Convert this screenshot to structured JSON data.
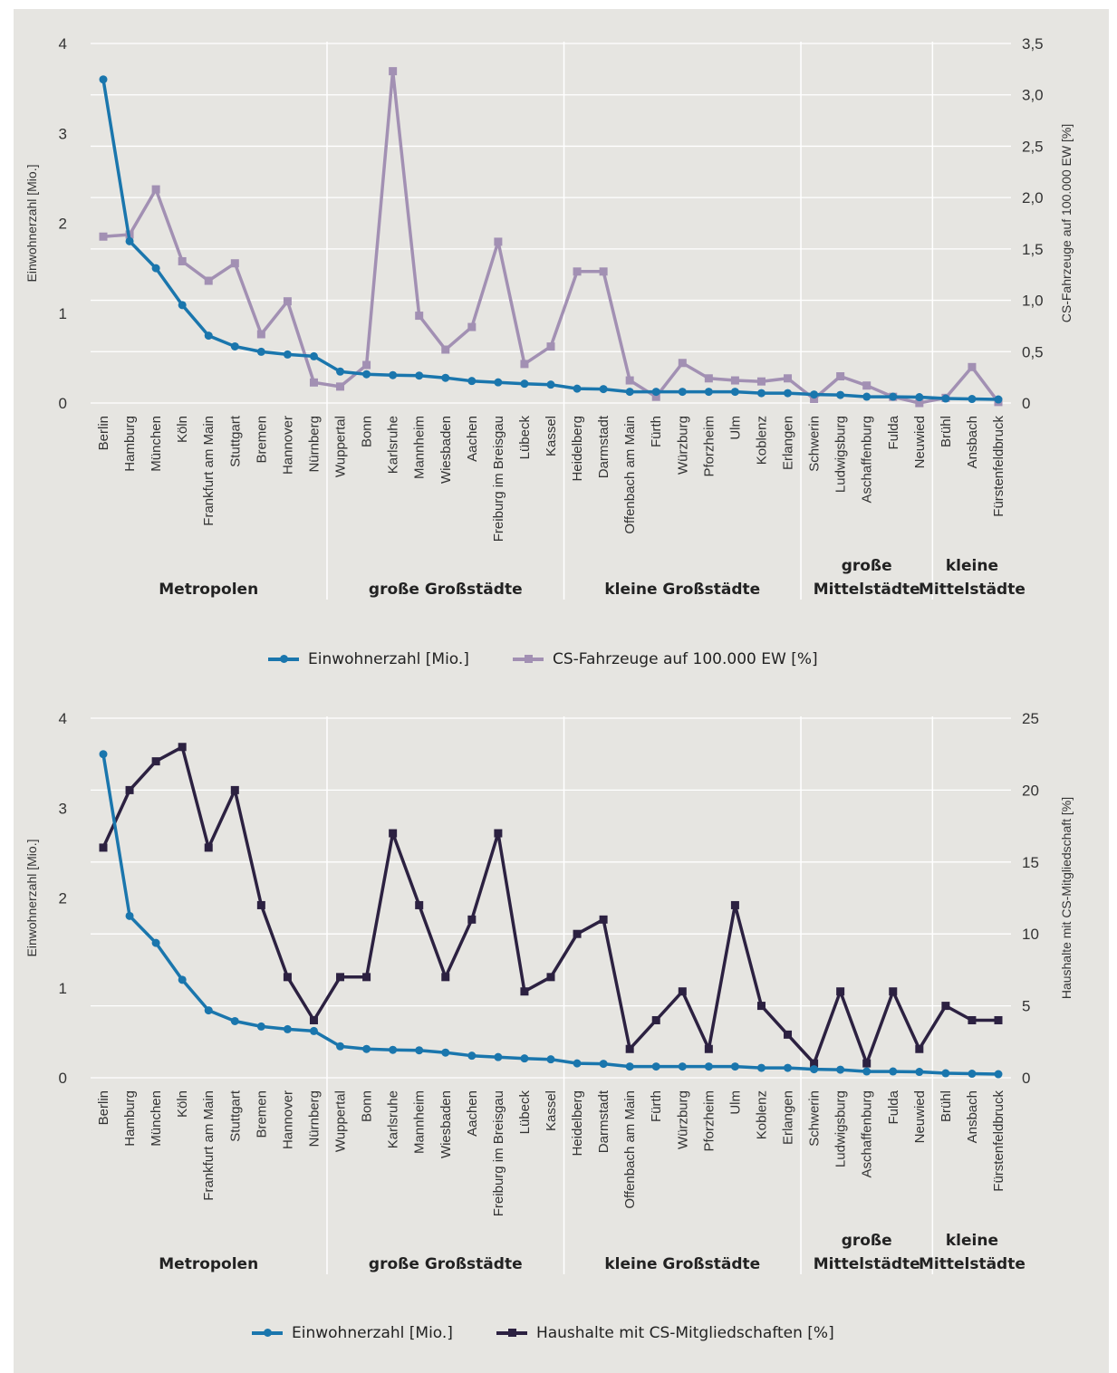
{
  "chart_data": [
    {
      "type": "line",
      "categories": [
        "Berlin",
        "Hamburg",
        "München",
        "Köln",
        "Frankfurt am Main",
        "Stuttgart",
        "Bremen",
        "Hannover",
        "Nürnberg",
        "Wuppertal",
        "Bonn",
        "Karlsruhe",
        "Mannheim",
        "Wiesbaden",
        "Aachen",
        "Freiburg im Breisgau",
        "Lübeck",
        "Kassel",
        "Heidelberg",
        "Darmstadt",
        "Offenbach am Main",
        "Fürth",
        "Würzburg",
        "Pforzheim",
        "Ulm",
        "Koblenz",
        "Erlangen",
        "Schwerin",
        "Ludwigsburg",
        "Aschaffenburg",
        "Fulda",
        "Neuwied",
        "Brühl",
        "Ansbach",
        "Fürstenfeldbruck"
      ],
      "groups": [
        {
          "label": [
            "Metropolen"
          ],
          "count": 9
        },
        {
          "label": [
            "große Großstädte"
          ],
          "count": 9
        },
        {
          "label": [
            "kleine Großstädte"
          ],
          "count": 9
        },
        {
          "label": [
            "große",
            "Mittelstädte"
          ],
          "count": 5
        },
        {
          "label": [
            "kleine",
            "Mittelstädte"
          ],
          "count": 3
        }
      ],
      "ylabel": "Einwohnerzahl [Mio.]",
      "y2label": "CS-Fahrzeuge auf 100.000 EW [%]",
      "ylim": [
        0,
        4
      ],
      "yticks": [
        "0",
        "1",
        "2",
        "3",
        "4"
      ],
      "y2lim": [
        0,
        3.5
      ],
      "y2ticks": [
        "0",
        "0,5",
        "1,0",
        "1,5",
        "2,0",
        "2,5",
        "3,0",
        "3,5"
      ],
      "series": [
        {
          "name": "Einwohnerzahl [Mio.]",
          "axis": "left",
          "marker": "circle",
          "color": "#1a76ad",
          "values": [
            3.6,
            1.8,
            1.5,
            1.09,
            0.75,
            0.63,
            0.57,
            0.54,
            0.52,
            0.35,
            0.32,
            0.31,
            0.305,
            0.28,
            0.245,
            0.23,
            0.215,
            0.205,
            0.16,
            0.155,
            0.125,
            0.125,
            0.125,
            0.125,
            0.125,
            0.11,
            0.11,
            0.095,
            0.09,
            0.07,
            0.07,
            0.065,
            0.05,
            0.045,
            0.04
          ]
        },
        {
          "name": "CS-Fahrzeuge auf 100.000 EW [%]",
          "axis": "right",
          "marker": "square",
          "color": "#a290b3",
          "values": [
            1.62,
            1.64,
            2.08,
            1.38,
            1.19,
            1.36,
            0.67,
            0.99,
            0.2,
            0.16,
            0.37,
            3.23,
            0.85,
            0.52,
            0.74,
            1.57,
            0.38,
            0.55,
            1.28,
            1.28,
            0.22,
            0.06,
            0.39,
            0.24,
            0.22,
            0.21,
            0.24,
            0.04,
            0.26,
            0.17,
            0.06,
            0.0,
            0.05,
            0.35,
            0.01
          ]
        }
      ]
    },
    {
      "type": "line",
      "categories": [
        "Berlin",
        "Hamburg",
        "München",
        "Köln",
        "Frankfurt am Main",
        "Stuttgart",
        "Bremen",
        "Hannover",
        "Nürnberg",
        "Wuppertal",
        "Bonn",
        "Karlsruhe",
        "Mannheim",
        "Wiesbaden",
        "Aachen",
        "Freiburg im Breisgau",
        "Lübeck",
        "Kassel",
        "Heidelberg",
        "Darmstadt",
        "Offenbach am Main",
        "Fürth",
        "Würzburg",
        "Pforzheim",
        "Ulm",
        "Koblenz",
        "Erlangen",
        "Schwerin",
        "Ludwigsburg",
        "Aschaffenburg",
        "Fulda",
        "Neuwied",
        "Brühl",
        "Ansbach",
        "Fürstenfeldbruck"
      ],
      "groups": [
        {
          "label": [
            "Metropolen"
          ],
          "count": 9
        },
        {
          "label": [
            "große Großstädte"
          ],
          "count": 9
        },
        {
          "label": [
            "kleine Großstädte"
          ],
          "count": 9
        },
        {
          "label": [
            "große",
            "Mittelstädte"
          ],
          "count": 5
        },
        {
          "label": [
            "kleine",
            "Mittelstädte"
          ],
          "count": 3
        }
      ],
      "ylabel": "Einwohnerzahl [Mio.]",
      "y2label": "Haushalte mit CS-Mitgliedschaft [%]",
      "ylim": [
        0,
        4
      ],
      "yticks": [
        "0",
        "1",
        "2",
        "3",
        "4"
      ],
      "y2lim": [
        0,
        25
      ],
      "y2ticks": [
        "0",
        "5",
        "10",
        "15",
        "20",
        "25"
      ],
      "series": [
        {
          "name": "Einwohnerzahl [Mio.]",
          "axis": "left",
          "marker": "circle",
          "color": "#1a76ad",
          "values": [
            3.6,
            1.8,
            1.5,
            1.09,
            0.75,
            0.63,
            0.57,
            0.54,
            0.52,
            0.35,
            0.32,
            0.31,
            0.305,
            0.28,
            0.245,
            0.23,
            0.215,
            0.205,
            0.16,
            0.155,
            0.125,
            0.125,
            0.125,
            0.125,
            0.125,
            0.11,
            0.11,
            0.095,
            0.09,
            0.07,
            0.07,
            0.065,
            0.05,
            0.045,
            0.04
          ]
        },
        {
          "name": "Haushalte mit CS-Mitgliedschaften [%]",
          "axis": "right",
          "marker": "square",
          "color": "#2c2141",
          "values": [
            16,
            20,
            22,
            23,
            16,
            20,
            12,
            7,
            4,
            7,
            7,
            17,
            12,
            7,
            11,
            17,
            6,
            7,
            10,
            11,
            2,
            4,
            6,
            2,
            12,
            5,
            3,
            1,
            6,
            1,
            6,
            2,
            5,
            4,
            4
          ]
        }
      ]
    }
  ]
}
